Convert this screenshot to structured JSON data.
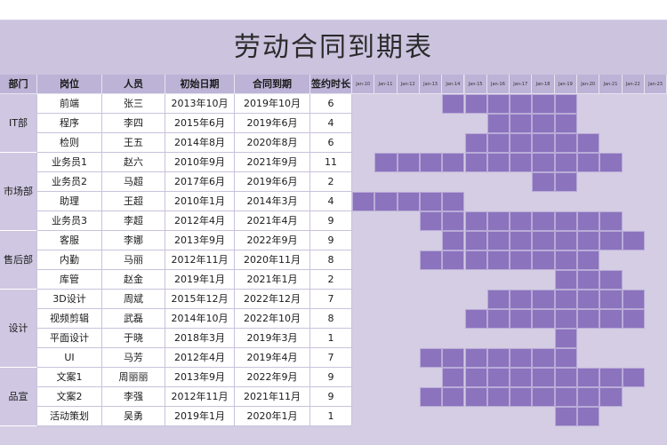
{
  "title": "劳动合同到期表",
  "headers": [
    "部门",
    "岗位",
    "人员",
    "初始日期",
    "合同到期",
    "签约时长"
  ],
  "months": [
    "Jan-10",
    "Jan-11",
    "Jan-12",
    "Jan-13",
    "Jan-14",
    "Jan-15",
    "Jan-16",
    "Jan-17",
    "Jan-18",
    "Jan-19",
    "Jan-20",
    "Jan-21",
    "Jan-22",
    "Jan-23"
  ],
  "departments": [
    {
      "name": "IT部",
      "start": 0,
      "span": 3
    },
    {
      "name": "市场部",
      "start": 3,
      "span": 4
    },
    {
      "name": "售后部",
      "start": 7,
      "span": 3
    },
    {
      "name": "设计",
      "start": 10,
      "span": 4
    },
    {
      "name": "品宣",
      "start": 14,
      "span": 3
    }
  ],
  "rows": [
    {
      "position": "前端",
      "person": "张三",
      "start_date": "2013年10月",
      "end_date": "2019年10月",
      "duration": "6",
      "bar_start_year": 2014,
      "bar_end_year": 2019
    },
    {
      "position": "程序",
      "person": "李四",
      "start_date": "2015年6月",
      "end_date": "2019年6月",
      "duration": "4",
      "bar_start_year": 2016,
      "bar_end_year": 2019
    },
    {
      "position": "检则",
      "person": "王五",
      "start_date": "2014年8月",
      "end_date": "2020年8月",
      "duration": "6",
      "bar_start_year": 2015,
      "bar_end_year": 2020
    },
    {
      "position": "业务员1",
      "person": "赵六",
      "start_date": "2010年9月",
      "end_date": "2021年9月",
      "duration": "11",
      "bar_start_year": 2011,
      "bar_end_year": 2021
    },
    {
      "position": "业务员2",
      "person": "马超",
      "start_date": "2017年6月",
      "end_date": "2019年6月",
      "duration": "2",
      "bar_start_year": 2018,
      "bar_end_year": 2019
    },
    {
      "position": "助理",
      "person": "王超",
      "start_date": "2010年1月",
      "end_date": "2014年3月",
      "duration": "4",
      "bar_start_year": 2010,
      "bar_end_year": 2014
    },
    {
      "position": "业务员3",
      "person": "李超",
      "start_date": "2012年4月",
      "end_date": "2021年4月",
      "duration": "9",
      "bar_start_year": 2013,
      "bar_end_year": 2021
    },
    {
      "position": "客服",
      "person": "李娜",
      "start_date": "2013年9月",
      "end_date": "2022年9月",
      "duration": "9",
      "bar_start_year": 2014,
      "bar_end_year": 2022
    },
    {
      "position": "内勤",
      "person": "马丽",
      "start_date": "2012年11月",
      "end_date": "2020年11月",
      "duration": "8",
      "bar_start_year": 2013,
      "bar_end_year": 2020
    },
    {
      "position": "库管",
      "person": "赵金",
      "start_date": "2019年1月",
      "end_date": "2021年1月",
      "duration": "2",
      "bar_start_year": 2019,
      "bar_end_year": 2021
    },
    {
      "position": "3D设计",
      "person": "周斌",
      "start_date": "2015年12月",
      "end_date": "2022年12月",
      "duration": "7",
      "bar_start_year": 2016,
      "bar_end_year": 2022
    },
    {
      "position": "视频剪辑",
      "person": "武磊",
      "start_date": "2014年10月",
      "end_date": "2022年10月",
      "duration": "8",
      "bar_start_year": 2015,
      "bar_end_year": 2022
    },
    {
      "position": "平面设计",
      "person": "于晓",
      "start_date": "2018年3月",
      "end_date": "2019年3月",
      "duration": "1",
      "bar_start_year": 2019,
      "bar_end_year": 2019
    },
    {
      "position": "UI",
      "person": "马芳",
      "start_date": "2012年4月",
      "end_date": "2019年4月",
      "duration": "7",
      "bar_start_year": 2013,
      "bar_end_year": 2019
    },
    {
      "position": "文案1",
      "person": "周丽丽",
      "start_date": "2013年9月",
      "end_date": "2022年9月",
      "duration": "9",
      "bar_start_year": 2014,
      "bar_end_year": 2022
    },
    {
      "position": "文案2",
      "person": "李强",
      "start_date": "2012年11月",
      "end_date": "2021年11月",
      "duration": "9",
      "bar_start_year": 2013,
      "bar_end_year": 2021
    },
    {
      "position": "活动策划",
      "person": "吴勇",
      "start_date": "2019年1月",
      "end_date": "2020年1月",
      "duration": "1",
      "bar_start_year": 2019,
      "bar_end_year": 2020
    }
  ],
  "colors": {
    "bar": "#8b73bd",
    "header": "#bdb3d6",
    "band": "#ccc3df"
  }
}
